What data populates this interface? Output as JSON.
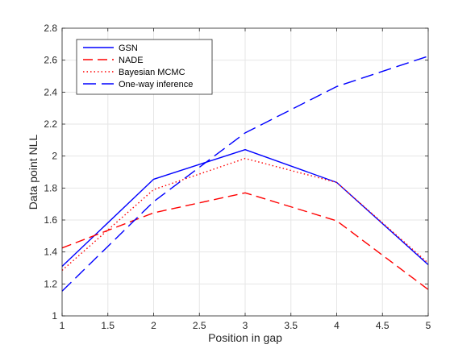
{
  "chart_data": {
    "type": "line",
    "title": "",
    "xlabel": "Position in gap",
    "ylabel": "Data point NLL",
    "xlim": [
      1,
      5
    ],
    "ylim": [
      1,
      2.8
    ],
    "xticks": [
      1,
      1.5,
      2,
      2.5,
      3,
      3.5,
      4,
      4.5,
      5
    ],
    "xtick_labels": [
      "1",
      "1.5",
      "2",
      "2.5",
      "3",
      "3.5",
      "4",
      "4.5",
      "5"
    ],
    "yticks": [
      1,
      1.2,
      1.4,
      1.6,
      1.8,
      2,
      2.2,
      2.4,
      2.6,
      2.8
    ],
    "ytick_labels": [
      "1",
      "1.2",
      "1.4",
      "1.6",
      "1.8",
      "2",
      "2.2",
      "2.4",
      "2.6",
      "2.8"
    ],
    "grid": true,
    "legend_position": "top-left",
    "x": [
      1,
      2,
      3,
      4,
      5
    ],
    "series": [
      {
        "name": "GSN",
        "values": [
          1.31,
          1.855,
          2.04,
          1.835,
          1.32
        ],
        "color": "#0000ff",
        "dash": "solid"
      },
      {
        "name": "NADE",
        "values": [
          1.425,
          1.645,
          1.77,
          1.595,
          1.165
        ],
        "color": "#ff0000",
        "dash": "dashed"
      },
      {
        "name": "Bayesian MCMC",
        "values": [
          1.285,
          1.79,
          1.985,
          1.835,
          1.33
        ],
        "color": "#ff0000",
        "dash": "dotted"
      },
      {
        "name": "One-way inference",
        "values": [
          1.155,
          1.715,
          2.145,
          2.435,
          2.625
        ],
        "color": "#0000ff",
        "dash": "longdash"
      }
    ]
  }
}
